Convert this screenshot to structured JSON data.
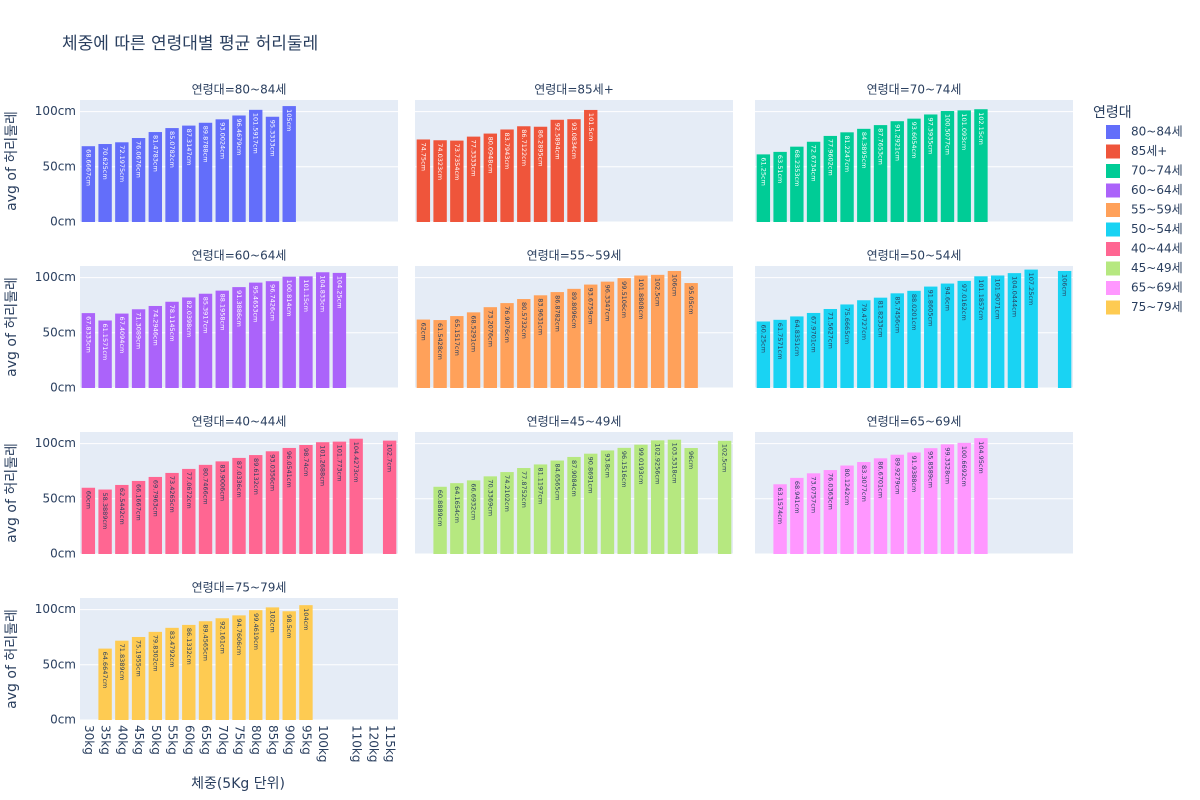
{
  "chart_data": {
    "type": "bar",
    "title": "체중에 따른 연령대별 평균 허리둘레",
    "x_title": "체중(5Kg 단위)",
    "y_title": "avg of 허리둘레",
    "legend_title": "연령대",
    "grid": true,
    "categories": [
      "30kg",
      "35kg",
      "40kg",
      "45kg",
      "50kg",
      "55kg",
      "60kg",
      "65kg",
      "70kg",
      "75kg",
      "80kg",
      "85kg",
      "90kg",
      "95kg",
      "100kg",
      null,
      "110kg",
      "120kg",
      "115kg"
    ],
    "ylim": [
      0,
      110.5
    ],
    "yticks": [
      {
        "value": 0,
        "label": "0cm"
      },
      {
        "value": 50,
        "label": "50cm"
      },
      {
        "value": 100,
        "label": "100cm"
      }
    ],
    "series": [
      {
        "name": "80~84세",
        "facet_title": "연령대=80~84세",
        "color": "#636efa",
        "values": [
          68.6667,
          70.625,
          72.1975,
          76.0676,
          81.4783,
          85.0782,
          87.3147,
          89.8788,
          93.0024,
          96.4679,
          101.5917,
          95.3333,
          105,
          null,
          null,
          null,
          null,
          null,
          null
        ],
        "value_labels": [
          "68.6667cm",
          "70.625cm",
          "72.1975cm",
          "76.0676cm",
          "81.4783cm",
          "85.0782cm",
          "87.3147cm",
          "89.8788cm",
          "93.0024cm",
          "96.4679cm",
          "101.5917cm",
          "95.3333cm",
          "105cm",
          null,
          null,
          null,
          null,
          null,
          null
        ]
      },
      {
        "name": "85세+",
        "facet_title": "연령대=85세+",
        "color": "#EF553B",
        "values": [
          74.75,
          74.0323,
          73.7354,
          77.3333,
          80.0948,
          83.7943,
          86.7122,
          86.2895,
          92.5894,
          93.0834,
          101.5,
          null,
          null,
          null,
          null,
          null,
          null,
          null,
          null
        ],
        "value_labels": [
          "74.75cm",
          "74.0323cm",
          "73.7354cm",
          "77.3333cm",
          "80.0948cm",
          "83.7943cm",
          "86.7122cm",
          "86.2895cm",
          "92.5894cm",
          "93.0834cm",
          "101.5cm",
          null,
          null,
          null,
          null,
          null,
          null,
          null,
          null
        ]
      },
      {
        "name": "70~74세",
        "facet_title": "연령대=70~74세",
        "color": "#00cc96",
        "values": [
          61.25,
          63.51,
          68.2353,
          72.6734,
          77.9602,
          81.2247,
          84.3895,
          87.7653,
          91.2921,
          93.6054,
          97.3935,
          100.5077,
          101.093,
          102.15,
          null,
          null,
          null,
          null,
          null
        ],
        "value_labels": [
          "61.25cm",
          "63.51cm",
          "68.2353cm",
          "72.6734cm",
          "77.9602cm",
          "81.2247cm",
          "84.3895cm",
          "87.7653cm",
          "91.2921cm",
          "93.6054cm",
          "97.3935cm",
          "100.5077cm",
          "101.093cm",
          "102.15cm",
          null,
          null,
          null,
          null,
          null
        ]
      },
      {
        "name": "60~64세",
        "facet_title": "연령대=60~64세",
        "color": "#ab63fa",
        "values": [
          67.8333,
          61.1571,
          67.4094,
          71.3089,
          74.2946,
          78.1145,
          82.0398,
          85.3917,
          88.1958,
          91.3886,
          95.4653,
          96.7426,
          100.814,
          101.15,
          104.833,
          104.25,
          null,
          null,
          null
        ],
        "value_labels": [
          "67.8333cm",
          "61.1571cm",
          "67.4094cm",
          "71.3089cm",
          "74.2946cm",
          "78.1145cm",
          "82.0398cm",
          "85.3917cm",
          "88.1958cm",
          "91.3886cm",
          "95.4653cm",
          "96.7426cm",
          "100.814cm",
          "101.15cm",
          "104.833cm",
          "104.25cm",
          null,
          null,
          null
        ]
      },
      {
        "name": "55~59세",
        "facet_title": "연령대=55~59세",
        "color": "#FFA15A",
        "values": [
          62,
          61.5428,
          65.1517,
          68.5291,
          73.2076,
          76.9076,
          80.5732,
          83.9631,
          86.8782,
          89.8096,
          93.6759,
          96.3347,
          99.5106,
          101.8808,
          102.5,
          106,
          95.05,
          null,
          null
        ],
        "value_labels": [
          "62cm",
          "61.5428cm",
          "65.1517cm",
          "68.5291cm",
          "73.2076cm",
          "76.9076cm",
          "80.5732cm",
          "83.9631cm",
          "86.8782cm",
          "89.8096cm",
          "93.6759cm",
          "96.3347cm",
          "99.5106cm",
          "101.8808cm",
          "102.5cm",
          "106cm",
          "95.05cm",
          null,
          null
        ]
      },
      {
        "name": "50~54세",
        "facet_title": "연령대=50~54세",
        "color": "#19d3f3",
        "values": [
          60.25,
          61.7571,
          64.8351,
          67.9701,
          71.5627,
          75.6665,
          79.4727,
          81.8233,
          85.7456,
          88.0201,
          91.8605,
          94.6,
          97.0162,
          101.1857,
          101.9071,
          104.0444,
          107.25,
          null,
          106
        ],
        "value_labels": [
          "60.25cm",
          "61.7571cm",
          "64.8351cm",
          "67.9701cm",
          "71.5627cm",
          "75.6665cm",
          "79.4727cm",
          "81.8233cm",
          "85.7456cm",
          "88.0201cm",
          "91.8605cm",
          "94.6cm",
          "97.0162cm",
          "101.1857cm",
          "101.9071cm",
          "104.0444cm",
          "107.25cm",
          null,
          "106cm"
        ]
      },
      {
        "name": "40~44세",
        "facet_title": "연령대=40~44세",
        "color": "#FF6692",
        "values": [
          60,
          58.3889,
          62.5442,
          66.1667,
          69.7963,
          73.4265,
          77.0672,
          80.7466,
          83.9006,
          87.0336,
          89.6132,
          93.0356,
          96.0541,
          98.74,
          101.2688,
          101.773,
          104.4273,
          null,
          102.7
        ],
        "value_labels": [
          "60cm",
          "58.3889cm",
          "62.5442cm",
          "66.1667cm",
          "69.7963cm",
          "73.4265cm",
          "77.0672cm",
          "80.7466cm",
          "83.9006cm",
          "87.0336cm",
          "89.6132cm",
          "93.0356cm",
          "96.0541cm",
          "98.74cm",
          "101.2688cm",
          "101.773cm",
          "104.4273cm",
          null,
          "102.7cm"
        ]
      },
      {
        "name": "45~49세",
        "facet_title": "연령대=45~49세",
        "color": "#B6E880",
        "values": [
          null,
          60.8889,
          64.1654,
          66.6932,
          70.3369,
          74.2102,
          77.8752,
          81.1197,
          84.6565,
          87.9084,
          90.8691,
          93.8,
          96.1516,
          99.0193,
          102.9256,
          103.5318,
          96,
          null,
          102.5
        ],
        "value_labels": [
          null,
          "60.8889cm",
          "64.1654cm",
          "66.6932cm",
          "70.3369cm",
          "74.2102cm",
          "77.8752cm",
          "81.1197cm",
          "84.6565cm",
          "87.9084cm",
          "90.8691cm",
          "93.8cm",
          "96.1516cm",
          "99.0193cm",
          "102.9256cm",
          "103.5318cm",
          "96cm",
          null,
          "102.5cm"
        ]
      },
      {
        "name": "65~69세",
        "facet_title": "연령대=65~69세",
        "color": "#FF97FF",
        "values": [
          null,
          63.1574,
          68.941,
          73.0757,
          76.0363,
          80.1242,
          83.3077,
          86.6701,
          89.9279,
          91.9388,
          95.8589,
          99.3328,
          100.6692,
          104.95,
          null,
          null,
          null,
          null,
          null
        ],
        "value_labels": [
          null,
          "63.1574cm",
          "68.941cm",
          "73.0757cm",
          "76.0363cm",
          "80.1242cm",
          "83.3077cm",
          "86.6701cm",
          "89.9279cm",
          "91.9388cm",
          "95.8589cm",
          "99.3328cm",
          "100.6692cm",
          "104.95cm",
          null,
          null,
          null,
          null,
          null
        ]
      },
      {
        "name": "75~79세",
        "facet_title": "연령대=75~79세",
        "color": "#FECB52",
        "values": [
          null,
          64.6647,
          71.8389,
          75.1955,
          79.8302,
          83.4792,
          86.1332,
          89.4565,
          92.161,
          94.7606,
          99.4619,
          102,
          98.5,
          104,
          null,
          null,
          null,
          null,
          null
        ],
        "value_labels": [
          null,
          "64.6647cm",
          "71.8389cm",
          "75.1955cm",
          "79.8302cm",
          "83.4792cm",
          "86.1332cm",
          "89.4565cm",
          "92.161cm",
          "94.7606cm",
          "99.4619cm",
          "102cm",
          "98.5cm",
          "104cm",
          null,
          null,
          null,
          null,
          null
        ]
      }
    ]
  }
}
